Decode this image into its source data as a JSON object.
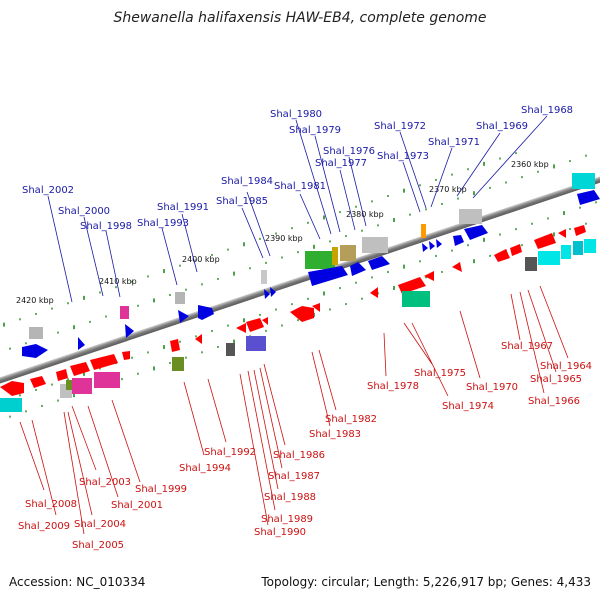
{
  "title": "Shewanella halifaxensis HAW-EB4, complete genome",
  "footer": {
    "accession": "Accession: NC_010334",
    "topology": "Topology: circular; Length: 5,226,917 bp; Genes: 4,433"
  },
  "colors": {
    "top_label": "#1a1aa6",
    "bottom_label": "#cc1111",
    "backbone": "#7f7f7f",
    "tick": "#1f8a1f"
  },
  "kbp_labels": [
    "2420 kbp",
    "2410 kbp",
    "2400 kbp",
    "2390 kbp",
    "2380 kbp",
    "2370 kbp",
    "2360 kbp"
  ],
  "top_labels": [
    "Shal_2002",
    "Shal_2000",
    "Shal_1998",
    "Shal_1993",
    "Shal_1991",
    "Shal_1985",
    "Shal_1984",
    "Shal_1981",
    "Shal_1980",
    "Shal_1979",
    "Shal_1977",
    "Shal_1976",
    "Shal_1973",
    "Shal_1972",
    "Shal_1971",
    "Shal_1969",
    "Shal_1968"
  ],
  "bottom_labels": [
    "Shal_2008",
    "Shal_2009",
    "Shal_2003",
    "Shal_2004",
    "Shal_2005",
    "Shal_2001",
    "Shal_1999",
    "Shal_1994",
    "Shal_1992",
    "Shal_1986",
    "Shal_1987",
    "Shal_1988",
    "Shal_1989",
    "Shal_1990",
    "Shal_1982",
    "Shal_1983",
    "Shal_1978",
    "Shal_1975",
    "Shal_1974",
    "Shal_1970",
    "Shal_1967",
    "Shal_1964",
    "Shal_1965",
    "Shal_1966"
  ]
}
